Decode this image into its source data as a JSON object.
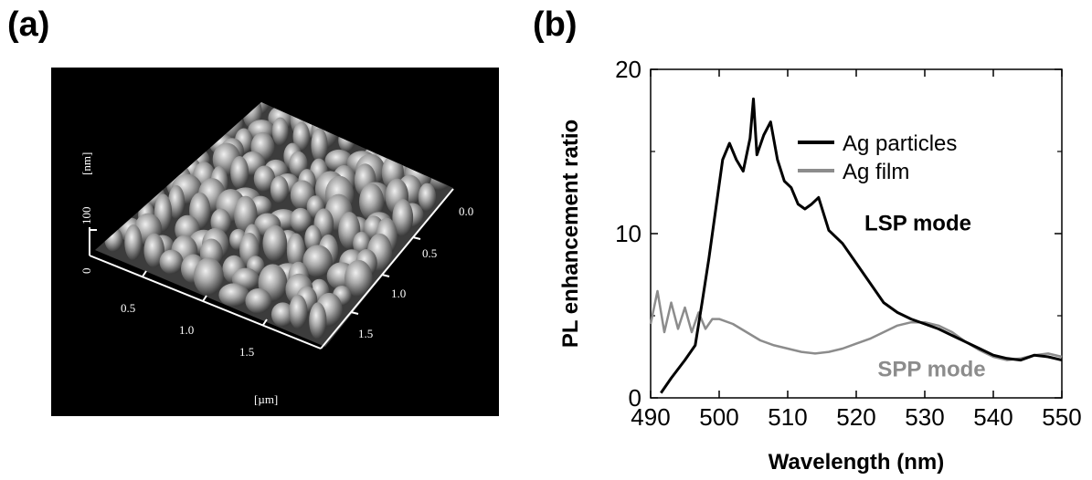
{
  "panels": {
    "a_label": "(a)",
    "b_label": "(b)"
  },
  "afm": {
    "z_unit": "[nm]",
    "z_ticks": [
      "100",
      "0"
    ],
    "x_ticks": [
      "0.5",
      "1.0",
      "1.5"
    ],
    "y_ticks": [
      "0.0",
      "0.5",
      "1.0",
      "1.5"
    ],
    "xy_unit": "[µm]"
  },
  "chart_data": {
    "type": "line",
    "xlabel": "Wavelength (nm)",
    "ylabel": "PL enhancement ratio",
    "xlim": [
      490,
      550
    ],
    "ylim": [
      0,
      20
    ],
    "xticks": [
      490,
      500,
      510,
      520,
      530,
      540,
      550
    ],
    "yticks": [
      0,
      10,
      20
    ],
    "grid": false,
    "legend_position": "top-center",
    "series": [
      {
        "name": "Ag particles",
        "color": "#000000",
        "x": [
          491.5,
          493,
          495,
          496.5,
          497.5,
          498.5,
          499.5,
          500.5,
          501.5,
          502.5,
          503.5,
          504.5,
          505,
          505.5,
          506.5,
          507.5,
          508.5,
          509.5,
          510.5,
          511.5,
          512.5,
          513.5,
          514.5,
          516,
          518,
          520,
          522,
          524,
          526,
          528,
          530,
          532,
          534,
          536,
          538,
          540,
          542,
          544,
          546,
          548,
          550
        ],
        "y": [
          0.3,
          1.2,
          2.3,
          3.2,
          5.8,
          8.5,
          11.5,
          14.5,
          15.5,
          14.5,
          13.8,
          15.8,
          18.2,
          14.8,
          16.0,
          16.8,
          14.5,
          13.2,
          12.8,
          11.8,
          11.5,
          11.8,
          12.2,
          10.2,
          9.4,
          8.2,
          7.0,
          5.8,
          5.2,
          4.8,
          4.5,
          4.2,
          3.8,
          3.4,
          3.0,
          2.6,
          2.4,
          2.3,
          2.6,
          2.5,
          2.3
        ]
      },
      {
        "name": "Ag film",
        "color": "#8c8c8c",
        "x": [
          490,
          491,
          492,
          493,
          494,
          495,
          496,
          497,
          498,
          499,
          500,
          502,
          504,
          506,
          508,
          510,
          512,
          514,
          516,
          518,
          520,
          522,
          524,
          526,
          528,
          530,
          532,
          534,
          536,
          538,
          540,
          542,
          544,
          546,
          548,
          550
        ],
        "y": [
          4.5,
          6.5,
          4.0,
          5.8,
          4.2,
          5.5,
          4.0,
          5.2,
          4.2,
          4.8,
          4.8,
          4.5,
          4.0,
          3.5,
          3.2,
          3.0,
          2.8,
          2.7,
          2.8,
          3.0,
          3.3,
          3.6,
          4.0,
          4.4,
          4.6,
          4.6,
          4.4,
          4.0,
          3.4,
          2.9,
          2.5,
          2.3,
          2.4,
          2.6,
          2.7,
          2.5
        ]
      }
    ],
    "annotations": [
      {
        "text": "LSP mode",
        "x": 529,
        "y": 10.2,
        "color": "#000000"
      },
      {
        "text": "SPP mode",
        "x": 531,
        "y": 1.3,
        "color": "#8c8c8c"
      }
    ]
  }
}
